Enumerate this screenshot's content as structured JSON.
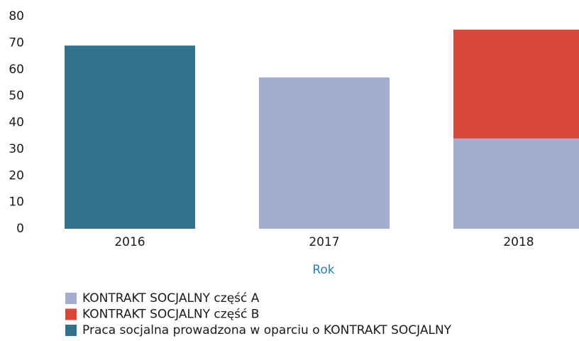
{
  "chart_data": {
    "type": "stacked_bar",
    "x_label": "Rok",
    "categories": [
      "2016",
      "2017",
      "2018"
    ],
    "series": [
      {
        "name": "KONTRAKT SOCJALNY część A",
        "color": "#a4adcf",
        "values": [
          0,
          57,
          34
        ]
      },
      {
        "name": "KONTRAKT SOCJALNY część B",
        "color": "#d8473a",
        "values": [
          0,
          0,
          41
        ]
      },
      {
        "name": "Praca socjalna prowadzona w oparciu o KONTRAKT SOCJALNY",
        "color": "#32728c",
        "values": [
          69,
          0,
          0
        ]
      }
    ],
    "ylim": [
      0,
      80
    ],
    "yticks": [
      0,
      10,
      20,
      30,
      40,
      50,
      60,
      70,
      80
    ],
    "grid": false
  }
}
